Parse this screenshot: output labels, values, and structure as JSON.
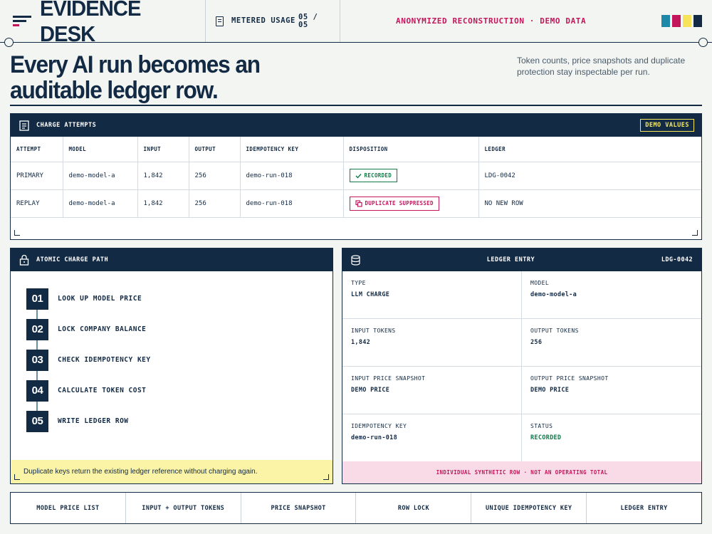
{
  "header": {
    "brand": "EVIDENCE DESK",
    "usage_label": "METERED USAGE",
    "usage_count": "05 / 05",
    "notice": "ANONYMIZED RECONSTRUCTION · DEMO DATA",
    "swatch_colors": [
      "#1e88a8",
      "#c2185b",
      "#f6e35a",
      "#132a44"
    ]
  },
  "hero": {
    "title": "Every AI run becomes an auditable ledger row.",
    "subtitle": "Token counts, price snapshots and duplicate protection stay inspectable per run."
  },
  "attempts": {
    "title": "CHARGE ATTEMPTS",
    "badge": "DEMO VALUES",
    "columns": [
      "ATTEMPT",
      "MODEL",
      "INPUT",
      "OUTPUT",
      "IDEMPOTENCY KEY",
      "DISPOSITION",
      "LEDGER"
    ],
    "rows": [
      {
        "attempt": "PRIMARY",
        "model": "demo-model-a",
        "input": "1,842",
        "output": "256",
        "key": "demo-run-018",
        "disposition": "RECORDED",
        "ledger": "LDG-0042"
      },
      {
        "attempt": "REPLAY",
        "model": "demo-model-a",
        "input": "1,842",
        "output": "256",
        "key": "demo-run-018",
        "disposition": "DUPLICATE SUPPRESSED",
        "ledger": "NO NEW ROW"
      }
    ]
  },
  "path": {
    "title": "ATOMIC CHARGE PATH",
    "steps": [
      {
        "num": "01",
        "label": "LOOK UP MODEL PRICE"
      },
      {
        "num": "02",
        "label": "LOCK COMPANY BALANCE"
      },
      {
        "num": "03",
        "label": "CHECK IDEMPOTENCY KEY"
      },
      {
        "num": "04",
        "label": "CALCULATE TOKEN COST"
      },
      {
        "num": "05",
        "label": "WRITE LEDGER ROW"
      }
    ],
    "footer": "Duplicate keys return the existing ledger reference without charging again."
  },
  "ledger": {
    "title": "LEDGER ENTRY",
    "id": "LDG-0042",
    "fields": [
      {
        "label": "TYPE",
        "value": "LLM CHARGE"
      },
      {
        "label": "MODEL",
        "value": "demo-model-a"
      },
      {
        "label": "INPUT TOKENS",
        "value": "1,842"
      },
      {
        "label": "OUTPUT TOKENS",
        "value": "256"
      },
      {
        "label": "INPUT PRICE SNAPSHOT",
        "value": "DEMO PRICE"
      },
      {
        "label": "OUTPUT PRICE SNAPSHOT",
        "value": "DEMO PRICE"
      },
      {
        "label": "IDEMPOTENCY KEY",
        "value": "demo-run-018"
      },
      {
        "label": "STATUS",
        "value": "RECORDED"
      }
    ],
    "footer": "INDIVIDUAL SYNTHETIC ROW · NOT AN OPERATING TOTAL"
  },
  "flow": [
    "MODEL PRICE LIST",
    "INPUT + OUTPUT TOKENS",
    "PRICE SNAPSHOT",
    "ROW LOCK",
    "UNIQUE IDEMPOTENCY KEY",
    "LEDGER ENTRY"
  ]
}
